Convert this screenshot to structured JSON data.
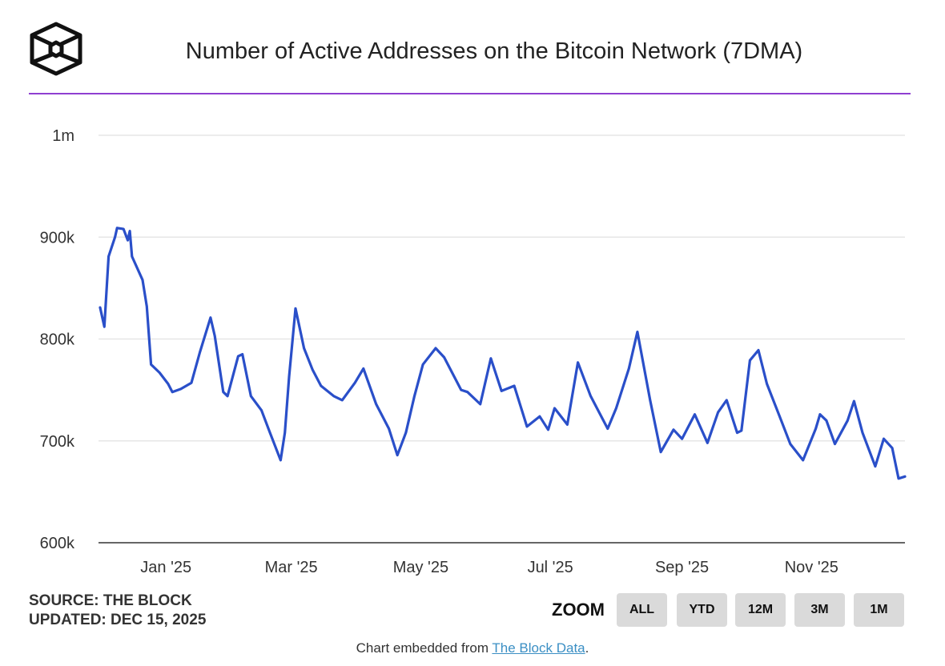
{
  "header": {
    "title": "Number of Active Addresses on the Bitcoin Network (7DMA)",
    "logo_icon": "the-block-cube-logo",
    "accent_color": "#8f3fd1"
  },
  "chart_data": {
    "type": "line",
    "title": "Number of Active Addresses on the Bitcoin Network (7DMA)",
    "xlabel": "",
    "ylabel": "",
    "ylim": [
      600000,
      1000000
    ],
    "xlim": [
      "2024-12-01",
      "2025-12-15"
    ],
    "yticks": [
      {
        "value": 600000,
        "label": "600k"
      },
      {
        "value": 700000,
        "label": "700k"
      },
      {
        "value": 800000,
        "label": "800k"
      },
      {
        "value": 900000,
        "label": "900k"
      },
      {
        "value": 1000000,
        "label": "1m"
      }
    ],
    "xticks": [
      {
        "date": "2025-01-01",
        "label": "Jan '25"
      },
      {
        "date": "2025-03-01",
        "label": "Mar '25"
      },
      {
        "date": "2025-05-01",
        "label": "May '25"
      },
      {
        "date": "2025-07-01",
        "label": "Jul '25"
      },
      {
        "date": "2025-09-01",
        "label": "Sep '25"
      },
      {
        "date": "2025-11-01",
        "label": "Nov '25"
      }
    ],
    "grid": true,
    "line_color": "#2a4fc9",
    "points": [
      [
        "2024-12-01",
        831000
      ],
      [
        "2024-12-03",
        812000
      ],
      [
        "2024-12-05",
        881000
      ],
      [
        "2024-12-08",
        900000
      ],
      [
        "2024-12-09",
        909000
      ],
      [
        "2024-12-12",
        908000
      ],
      [
        "2024-12-14",
        897000
      ],
      [
        "2024-12-15",
        906000
      ],
      [
        "2024-12-16",
        881000
      ],
      [
        "2024-12-21",
        858000
      ],
      [
        "2024-12-23",
        832000
      ],
      [
        "2024-12-25",
        775000
      ],
      [
        "2024-12-29",
        767000
      ],
      [
        "2025-01-02",
        756000
      ],
      [
        "2025-01-04",
        748000
      ],
      [
        "2025-01-08",
        751000
      ],
      [
        "2025-01-13",
        757000
      ],
      [
        "2025-01-17",
        787000
      ],
      [
        "2025-01-22",
        821000
      ],
      [
        "2025-01-24",
        803000
      ],
      [
        "2025-01-28",
        748000
      ],
      [
        "2025-01-30",
        744000
      ],
      [
        "2025-02-04",
        783000
      ],
      [
        "2025-02-06",
        785000
      ],
      [
        "2025-02-10",
        744000
      ],
      [
        "2025-02-15",
        730000
      ],
      [
        "2025-02-19",
        708000
      ],
      [
        "2025-02-24",
        681000
      ],
      [
        "2025-02-26",
        708000
      ],
      [
        "2025-02-28",
        763000
      ],
      [
        "2025-03-03",
        830000
      ],
      [
        "2025-03-07",
        791000
      ],
      [
        "2025-03-11",
        770000
      ],
      [
        "2025-03-15",
        754000
      ],
      [
        "2025-03-21",
        744000
      ],
      [
        "2025-03-25",
        740000
      ],
      [
        "2025-03-31",
        757000
      ],
      [
        "2025-04-04",
        771000
      ],
      [
        "2025-04-10",
        736000
      ],
      [
        "2025-04-16",
        712000
      ],
      [
        "2025-04-20",
        686000
      ],
      [
        "2025-04-24",
        708000
      ],
      [
        "2025-04-28",
        744000
      ],
      [
        "2025-05-02",
        775000
      ],
      [
        "2025-05-08",
        791000
      ],
      [
        "2025-05-12",
        782000
      ],
      [
        "2025-05-20",
        750000
      ],
      [
        "2025-05-23",
        748000
      ],
      [
        "2025-05-29",
        736000
      ],
      [
        "2025-06-03",
        781000
      ],
      [
        "2025-06-08",
        749000
      ],
      [
        "2025-06-14",
        754000
      ],
      [
        "2025-06-20",
        714000
      ],
      [
        "2025-06-26",
        724000
      ],
      [
        "2025-06-30",
        711000
      ],
      [
        "2025-07-03",
        732000
      ],
      [
        "2025-07-09",
        716000
      ],
      [
        "2025-07-14",
        777000
      ],
      [
        "2025-07-20",
        744000
      ],
      [
        "2025-07-28",
        712000
      ],
      [
        "2025-08-01",
        732000
      ],
      [
        "2025-08-07",
        771000
      ],
      [
        "2025-08-11",
        807000
      ],
      [
        "2025-08-17",
        740000
      ],
      [
        "2025-08-22",
        689000
      ],
      [
        "2025-08-28",
        711000
      ],
      [
        "2025-09-01",
        702000
      ],
      [
        "2025-09-07",
        726000
      ],
      [
        "2025-09-13",
        698000
      ],
      [
        "2025-09-18",
        728000
      ],
      [
        "2025-09-22",
        740000
      ],
      [
        "2025-09-27",
        708000
      ],
      [
        "2025-09-29",
        710000
      ],
      [
        "2025-10-03",
        779000
      ],
      [
        "2025-10-07",
        789000
      ],
      [
        "2025-10-11",
        756000
      ],
      [
        "2025-10-17",
        724000
      ],
      [
        "2025-10-22",
        697000
      ],
      [
        "2025-10-28",
        681000
      ],
      [
        "2025-11-03",
        712000
      ],
      [
        "2025-11-05",
        726000
      ],
      [
        "2025-11-08",
        720000
      ],
      [
        "2025-11-12",
        697000
      ],
      [
        "2025-11-18",
        720000
      ],
      [
        "2025-11-21",
        739000
      ],
      [
        "2025-11-25",
        708000
      ],
      [
        "2025-12-01",
        675000
      ],
      [
        "2025-12-05",
        702000
      ],
      [
        "2025-12-09",
        693000
      ],
      [
        "2025-12-12",
        663000
      ],
      [
        "2025-12-15",
        665000
      ]
    ]
  },
  "footer": {
    "source": "SOURCE: THE BLOCK",
    "updated": "UPDATED: DEC 15, 2025",
    "zoom_label": "ZOOM",
    "zoom_buttons": [
      "ALL",
      "YTD",
      "12M",
      "3M",
      "1M"
    ],
    "embed_prefix": "Chart embedded from ",
    "embed_link": "The Block Data",
    "embed_suffix": "."
  }
}
